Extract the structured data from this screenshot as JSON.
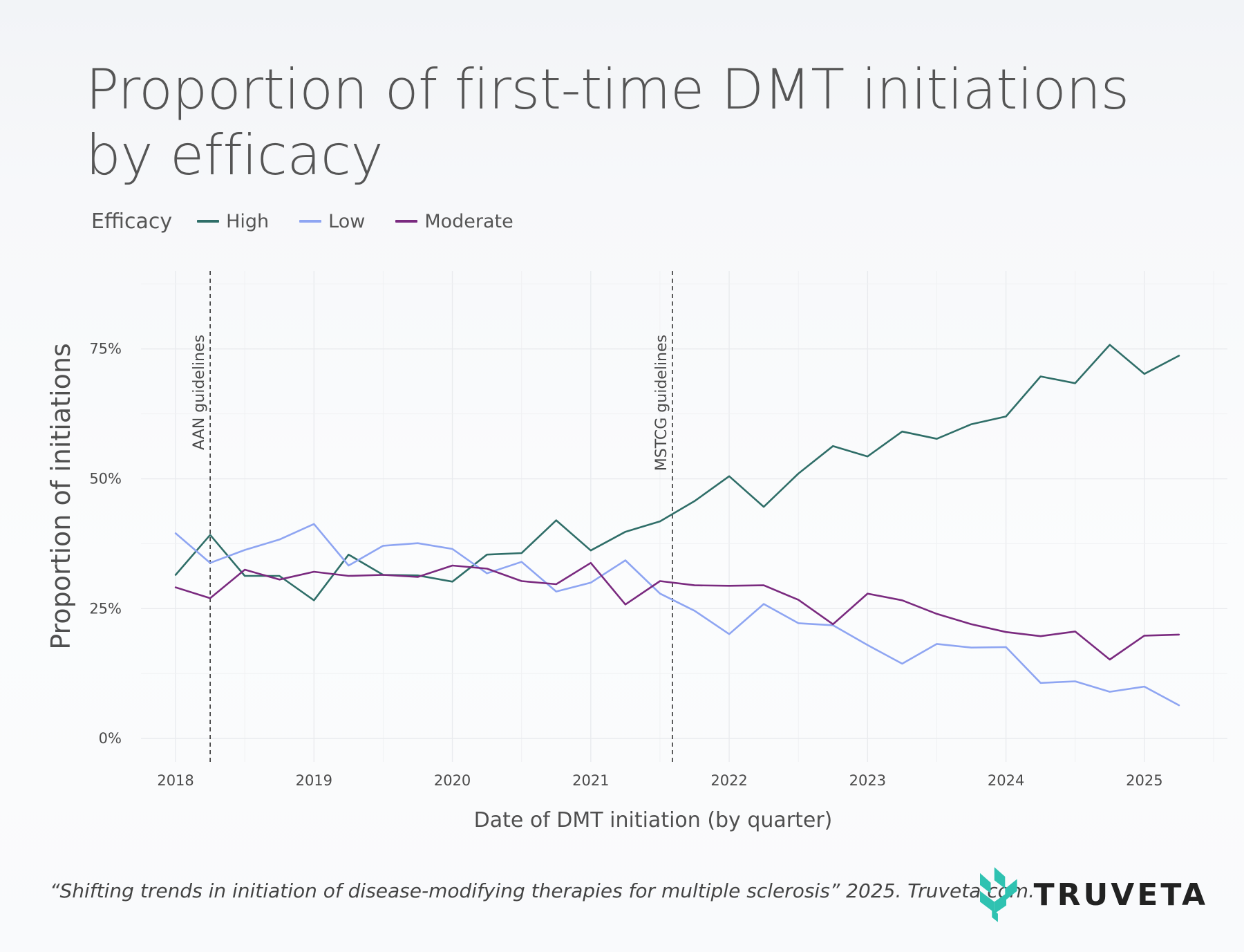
{
  "title": "Proportion of first-time DMT initiations by efficacy",
  "legend": {
    "title": "Efficacy",
    "items": [
      {
        "label": "High",
        "color": "#2f6e68"
      },
      {
        "label": "Low",
        "color": "#8ea5f2"
      },
      {
        "label": "Moderate",
        "color": "#7a2a7f"
      }
    ]
  },
  "footer": {
    "citation": "“Shifting trends in initiation of disease-modifying therapies for multiple sclerosis” 2025. Truveta.com.",
    "logo_text": "TRUVETA",
    "logo_icon": "truveta-leaf-icon"
  },
  "chart_data": {
    "type": "line",
    "title": "Proportion of first-time DMT initiations by efficacy",
    "xlabel": "Date of DMT initiation (by quarter)",
    "ylabel": "Proportion of initiations",
    "xlim": [
      2017.75,
      2025.6
    ],
    "ylim": [
      -0.045,
      0.9
    ],
    "x_ticks": [
      {
        "value": 2018,
        "label": "2018"
      },
      {
        "value": 2019,
        "label": "2019"
      },
      {
        "value": 2020,
        "label": "2020"
      },
      {
        "value": 2021,
        "label": "2021"
      },
      {
        "value": 2022,
        "label": "2022"
      },
      {
        "value": 2023,
        "label": "2023"
      },
      {
        "value": 2024,
        "label": "2024"
      },
      {
        "value": 2025,
        "label": "2025"
      }
    ],
    "y_ticks": [
      {
        "value": 0,
        "label": "0%"
      },
      {
        "value": 0.25,
        "label": "25%"
      },
      {
        "value": 0.5,
        "label": "50%"
      },
      {
        "value": 0.75,
        "label": "75%"
      }
    ],
    "grid": true,
    "x": [
      2018,
      2018.25,
      2018.5,
      2018.75,
      2019,
      2019.25,
      2019.5,
      2019.75,
      2020,
      2020.25,
      2020.5,
      2020.75,
      2021,
      2021.25,
      2021.5,
      2021.75,
      2022,
      2022.25,
      2022.5,
      2022.75,
      2023,
      2023.25,
      2023.5,
      2023.75,
      2024,
      2024.25,
      2024.5,
      2024.75,
      2025,
      2025.25
    ],
    "series": [
      {
        "name": "High",
        "color": "#2f6e68",
        "values": [
          0.315,
          0.392,
          0.313,
          0.313,
          0.266,
          0.354,
          0.315,
          0.314,
          0.302,
          0.354,
          0.357,
          0.42,
          0.362,
          0.398,
          0.418,
          0.457,
          0.505,
          0.446,
          0.51,
          0.563,
          0.543,
          0.591,
          0.577,
          0.605,
          0.62,
          0.697,
          0.684,
          0.758,
          0.702,
          0.737
        ]
      },
      {
        "name": "Low",
        "color": "#8ea5f2",
        "values": [
          0.395,
          0.338,
          0.363,
          0.383,
          0.413,
          0.333,
          0.371,
          0.376,
          0.365,
          0.318,
          0.34,
          0.283,
          0.3,
          0.343,
          0.279,
          0.246,
          0.201,
          0.259,
          0.222,
          0.218,
          0.18,
          0.144,
          0.182,
          0.175,
          0.176,
          0.107,
          0.11,
          0.09,
          0.1,
          0.064
        ]
      },
      {
        "name": "Moderate",
        "color": "#7a2a7f",
        "values": [
          0.291,
          0.27,
          0.325,
          0.306,
          0.321,
          0.313,
          0.315,
          0.311,
          0.333,
          0.327,
          0.303,
          0.297,
          0.338,
          0.258,
          0.303,
          0.295,
          0.294,
          0.295,
          0.267,
          0.22,
          0.279,
          0.266,
          0.24,
          0.22,
          0.205,
          0.197,
          0.206,
          0.152,
          0.198,
          0.2
        ]
      }
    ],
    "annotations": [
      {
        "x": 2018.25,
        "label": "AAN guidelines"
      },
      {
        "x": 2021.59,
        "label": "MSTCG guidelines"
      }
    ]
  }
}
